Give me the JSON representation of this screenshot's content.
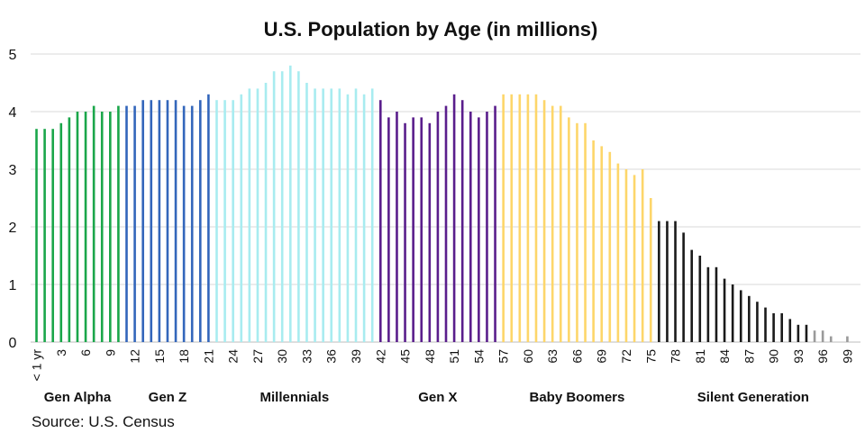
{
  "chart_data": {
    "type": "bar",
    "title": "U.S. Population by Age (in millions)",
    "source": "Source: U.S. Census",
    "ylim": [
      0,
      5
    ],
    "yticks": [
      "0",
      "1",
      "2",
      "3",
      "4",
      "5"
    ],
    "grid": true,
    "ages": [
      0,
      1,
      2,
      3,
      4,
      5,
      6,
      7,
      8,
      9,
      10,
      11,
      12,
      13,
      14,
      15,
      16,
      17,
      18,
      19,
      20,
      21,
      22,
      23,
      24,
      25,
      26,
      27,
      28,
      29,
      30,
      31,
      32,
      33,
      34,
      35,
      36,
      37,
      38,
      39,
      40,
      41,
      42,
      43,
      44,
      45,
      46,
      47,
      48,
      49,
      50,
      51,
      52,
      53,
      54,
      55,
      56,
      57,
      58,
      59,
      60,
      61,
      62,
      63,
      64,
      65,
      66,
      67,
      68,
      69,
      70,
      71,
      72,
      73,
      74,
      75,
      76,
      77,
      78,
      79,
      80,
      81,
      82,
      83,
      84,
      85,
      86,
      87,
      88,
      89,
      90,
      91,
      92,
      93,
      94,
      95,
      96,
      97,
      98,
      99
    ],
    "values": [
      3.7,
      3.7,
      3.7,
      3.8,
      3.9,
      4.0,
      4.0,
      4.1,
      4.0,
      4.0,
      4.1,
      4.1,
      4.1,
      4.2,
      4.2,
      4.2,
      4.2,
      4.2,
      4.1,
      4.1,
      4.2,
      4.3,
      4.2,
      4.2,
      4.2,
      4.3,
      4.4,
      4.4,
      4.5,
      4.7,
      4.7,
      4.8,
      4.7,
      4.5,
      4.4,
      4.4,
      4.4,
      4.4,
      4.3,
      4.4,
      4.3,
      4.4,
      4.2,
      3.9,
      4.0,
      3.8,
      3.9,
      3.9,
      3.8,
      4.0,
      4.1,
      4.3,
      4.2,
      4.0,
      3.9,
      4.0,
      4.1,
      4.3,
      4.3,
      4.3,
      4.3,
      4.3,
      4.2,
      4.1,
      4.1,
      3.9,
      3.8,
      3.8,
      3.5,
      3.4,
      3.3,
      3.1,
      3.0,
      2.9,
      3.0,
      2.5,
      2.1,
      2.1,
      2.1,
      1.9,
      1.6,
      1.5,
      1.3,
      1.3,
      1.1,
      1.0,
      0.9,
      0.8,
      0.7,
      0.6,
      0.5,
      0.5,
      0.4,
      0.3,
      0.3,
      0.2,
      0.2,
      0.1,
      0.0,
      0.1
    ],
    "xtick_labels": [
      {
        "age": 0,
        "label": "< 1 yr"
      },
      {
        "age": 3,
        "label": "3"
      },
      {
        "age": 6,
        "label": "6"
      },
      {
        "age": 9,
        "label": "9"
      },
      {
        "age": 12,
        "label": "12"
      },
      {
        "age": 15,
        "label": "15"
      },
      {
        "age": 18,
        "label": "18"
      },
      {
        "age": 21,
        "label": "21"
      },
      {
        "age": 24,
        "label": "24"
      },
      {
        "age": 27,
        "label": "27"
      },
      {
        "age": 30,
        "label": "30"
      },
      {
        "age": 33,
        "label": "33"
      },
      {
        "age": 36,
        "label": "36"
      },
      {
        "age": 39,
        "label": "39"
      },
      {
        "age": 42,
        "label": "42"
      },
      {
        "age": 45,
        "label": "45"
      },
      {
        "age": 48,
        "label": "48"
      },
      {
        "age": 51,
        "label": "51"
      },
      {
        "age": 54,
        "label": "54"
      },
      {
        "age": 57,
        "label": "57"
      },
      {
        "age": 60,
        "label": "60"
      },
      {
        "age": 63,
        "label": "63"
      },
      {
        "age": 66,
        "label": "66"
      },
      {
        "age": 69,
        "label": "69"
      },
      {
        "age": 72,
        "label": "72"
      },
      {
        "age": 75,
        "label": "75"
      },
      {
        "age": 78,
        "label": "78"
      },
      {
        "age": 81,
        "label": "81"
      },
      {
        "age": 84,
        "label": "84"
      },
      {
        "age": 87,
        "label": "87"
      },
      {
        "age": 90,
        "label": "90"
      },
      {
        "age": 93,
        "label": "93"
      },
      {
        "age": 96,
        "label": "96"
      },
      {
        "age": 99,
        "label": "99"
      }
    ],
    "generations": [
      {
        "name": "Gen Alpha",
        "from": 0,
        "to": 10,
        "color": "#1aa64a"
      },
      {
        "name": "Gen Z",
        "from": 11,
        "to": 21,
        "color": "#3366bb"
      },
      {
        "name": "Millennials",
        "from": 22,
        "to": 41,
        "color": "#a8ecf0"
      },
      {
        "name": "Gen X",
        "from": 42,
        "to": 56,
        "color": "#5a1e8c"
      },
      {
        "name": "Baby Boomers",
        "from": 57,
        "to": 75,
        "color": "#fdd66a"
      },
      {
        "name": "Silent Generation",
        "from": 76,
        "to": 99,
        "color": "#1a1a1a"
      }
    ]
  }
}
